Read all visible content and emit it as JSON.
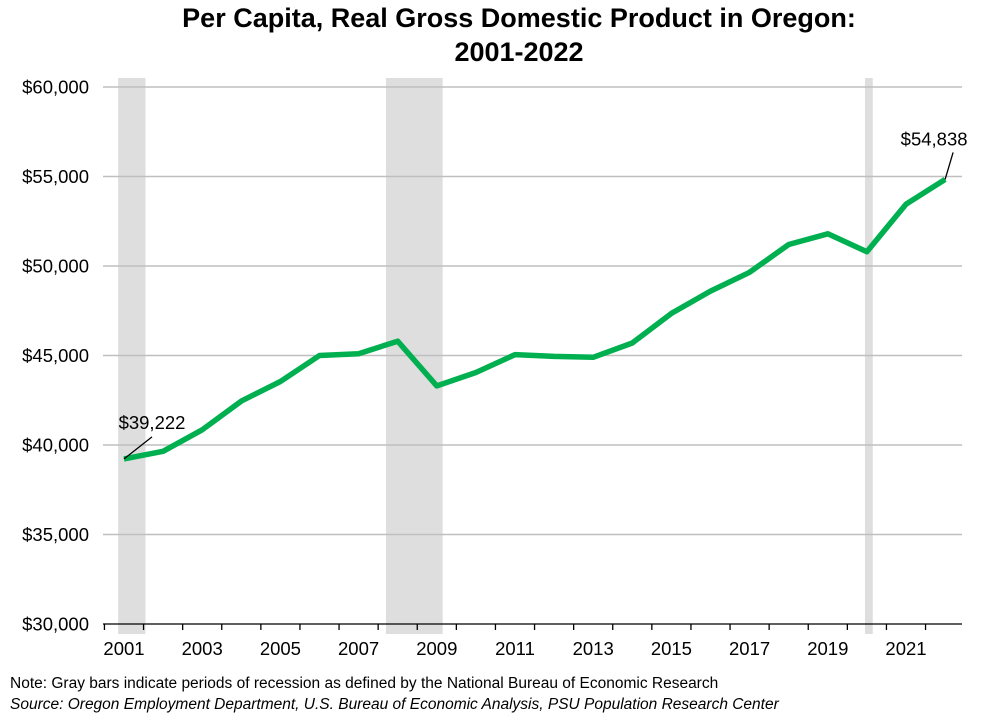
{
  "chart_data": {
    "type": "line",
    "title_line1": "Per Capita, Real Gross Domestic Product in Oregon:",
    "title_line2": "2001-2022",
    "xlabel": "",
    "ylabel": "",
    "ylim": [
      30000,
      60000
    ],
    "xlim": [
      2001,
      2022
    ],
    "y_ticks": [
      {
        "value": 30000,
        "label": "$30,000"
      },
      {
        "value": 35000,
        "label": "$35,000"
      },
      {
        "value": 40000,
        "label": "$40,000"
      },
      {
        "value": 45000,
        "label": "$45,000"
      },
      {
        "value": 50000,
        "label": "$50,000"
      },
      {
        "value": 55000,
        "label": "$55,000"
      },
      {
        "value": 60000,
        "label": "$60,000"
      }
    ],
    "x_ticks": [
      {
        "value": 2001,
        "label": "2001"
      },
      {
        "value": 2003,
        "label": "2003"
      },
      {
        "value": 2005,
        "label": "2005"
      },
      {
        "value": 2007,
        "label": "2007"
      },
      {
        "value": 2009,
        "label": "2009"
      },
      {
        "value": 2011,
        "label": "2011"
      },
      {
        "value": 2013,
        "label": "2013"
      },
      {
        "value": 2015,
        "label": "2015"
      },
      {
        "value": 2017,
        "label": "2017"
      },
      {
        "value": 2019,
        "label": "2019"
      },
      {
        "value": 2021,
        "label": "2021"
      }
    ],
    "x": [
      2001,
      2002,
      2003,
      2004,
      2005,
      2006,
      2007,
      2008,
      2009,
      2010,
      2011,
      2012,
      2013,
      2014,
      2015,
      2016,
      2017,
      2018,
      2019,
      2020,
      2021,
      2022
    ],
    "series": [
      {
        "name": "Per Capita Real GDP",
        "color": "#00b050",
        "values": [
          39222,
          39650,
          40850,
          42450,
          43550,
          45000,
          45100,
          45800,
          43300,
          44050,
          45050,
          44950,
          44900,
          45700,
          47350,
          48600,
          49650,
          51200,
          51800,
          50800,
          53450,
          54838
        ]
      }
    ],
    "recessions": [
      {
        "start": 2000.85,
        "end": 2001.55
      },
      {
        "start": 2007.7,
        "end": 2009.15
      },
      {
        "start": 2019.95,
        "end": 2020.15
      }
    ],
    "recession_color": "#dedede",
    "annotations": [
      {
        "x": 2001,
        "y": 39222,
        "text": "$39,222",
        "placement": "above-right"
      },
      {
        "x": 2022,
        "y": 54838,
        "text": "$54,838",
        "placement": "above"
      }
    ],
    "grid": true
  },
  "notes": {
    "note": "Note: Gray bars indicate periods of recession as defined by the National Bureau of Economic Research",
    "source": "Source: Oregon Employment Department, U.S. Bureau of Economic Analysis, PSU Population Research Center"
  }
}
